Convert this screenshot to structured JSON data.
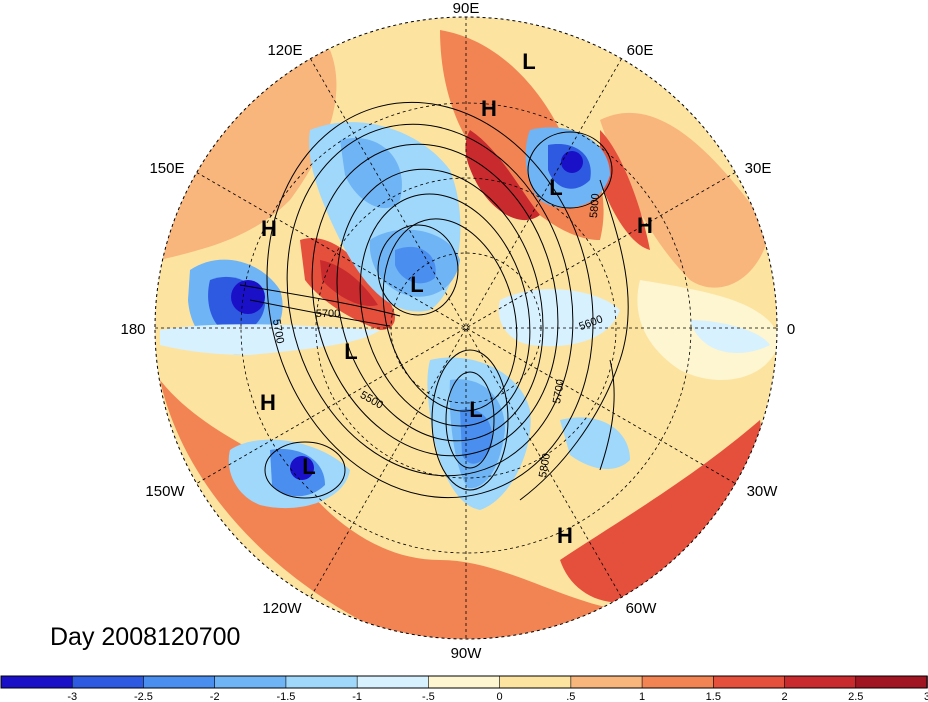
{
  "title": "Day 2008120700",
  "longitude_labels": [
    "90E",
    "60E",
    "30E",
    "0",
    "30W",
    "60W",
    "90W",
    "120W",
    "150W",
    "180",
    "150E",
    "120E"
  ],
  "pressure_systems": [
    {
      "type": "L"
    },
    {
      "type": "H"
    },
    {
      "type": "L"
    },
    {
      "type": "H"
    },
    {
      "type": "H"
    },
    {
      "type": "L"
    },
    {
      "type": "L"
    },
    {
      "type": "L"
    },
    {
      "type": "H"
    },
    {
      "type": "L"
    },
    {
      "type": "H"
    }
  ],
  "contour_labels": [
    "5700",
    "5700",
    "5500",
    "5800",
    "5600",
    "5700",
    "5800"
  ],
  "colorbar": {
    "ticks": [
      "-3",
      "-2.5",
      "-2",
      "-1.5",
      "-1",
      "-.5",
      "0",
      ".5",
      "1",
      "1.5",
      "2",
      "2.5",
      "3"
    ],
    "colors": [
      "#1a10c8",
      "#2d5ae0",
      "#4a8ff0",
      "#6fb4f5",
      "#9fd8fb",
      "#d8f1fe",
      "#fdf6d0",
      "#fde3a0",
      "#f8b57c",
      "#f28454",
      "#e5503c",
      "#c92a2e",
      "#a11522"
    ]
  }
}
